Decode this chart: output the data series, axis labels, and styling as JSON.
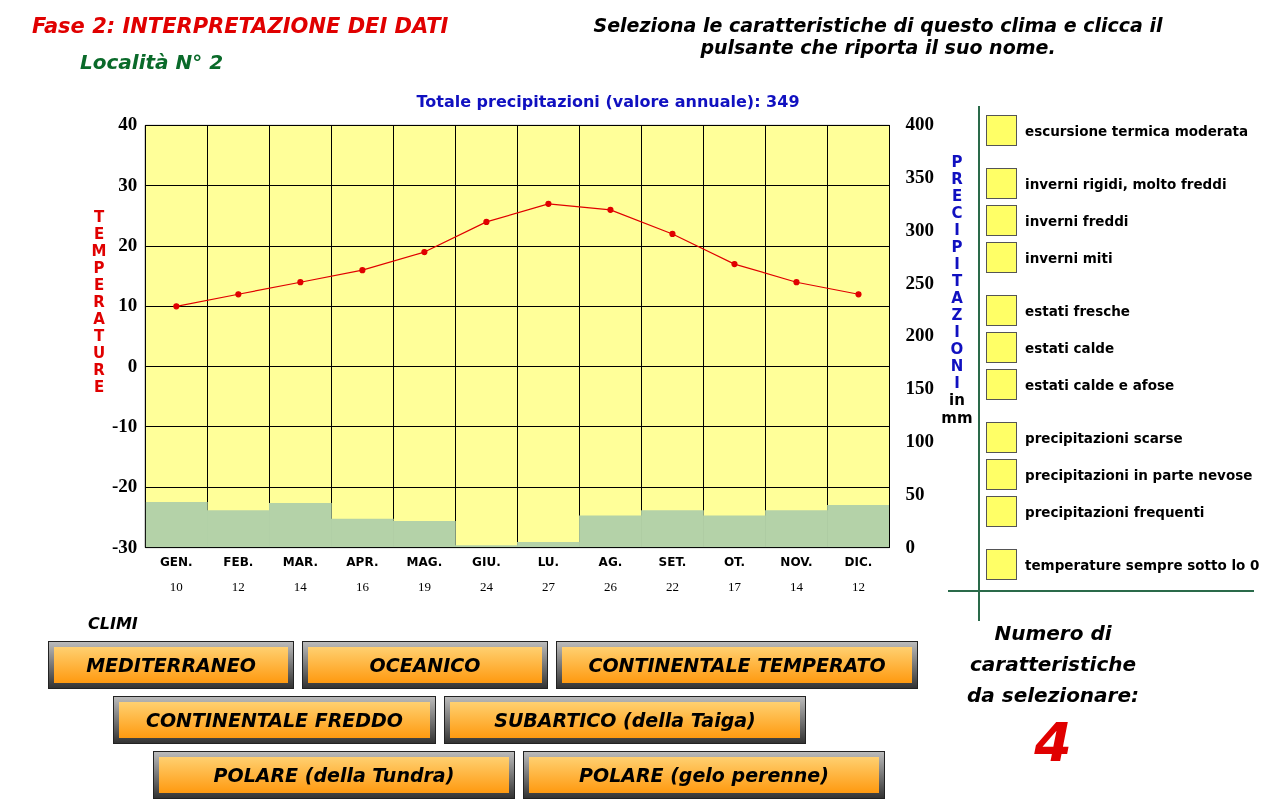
{
  "chart_data": [
    {
      "type": "bar",
      "title": "Fase 2: INTERPRETAZIONE DEI DATI",
      "subtitle": "Località N° 2",
      "annotations": [
        "Seleziona le caratteristiche  di questo clima e clicca il pulsante che riporta il suo nome.",
        "Totale precipitazioni (valore annuale):  349"
      ],
      "categories": [
        "GEN.",
        "FEB.",
        "MAR.",
        "APR.",
        "MAG.",
        "GIU.",
        "LU.",
        "AG.",
        "SET.",
        "OT.",
        "NOV.",
        "DIC."
      ],
      "series": [
        {
          "type": "bar",
          "axis": "y2",
          "color": "#b4d2a8",
          "values": [
            43,
            35,
            42,
            27,
            25,
            2,
            5,
            30,
            35,
            30,
            35,
            40
          ]
        },
        {
          "type": "line",
          "axis": "y",
          "color": "#e00000",
          "marker": "circle",
          "values": [
            10,
            12,
            14,
            16,
            19,
            24,
            27,
            26,
            22,
            17,
            14,
            12
          ],
          "value_labels": [
            "10",
            "12",
            "14",
            "16",
            "19",
            "24",
            "27",
            "26",
            "22",
            "17",
            "14",
            "12"
          ]
        }
      ],
      "ylabel": "TEMPERATURE",
      "y2label": "PRECIPITAZIONI in mm",
      "ylim": [
        -30,
        40
      ],
      "yticks": [
        -30,
        -20,
        -10,
        0,
        10,
        20,
        30,
        40
      ],
      "y2lim": [
        0,
        400
      ],
      "y2ticks": [
        0,
        50,
        100,
        150,
        200,
        250,
        300,
        350,
        400
      ],
      "grid": true,
      "legend": false
    },
    {
      "type": "other",
      "annotations": [
        "escursione termica moderata",
        "inverni rigidi, molto freddi",
        "inverni freddi",
        "inverni miti",
        "estati fresche",
        "estati calde",
        "estati calde e afose",
        "precipitazioni scarse",
        "precipitazioni in parte nevose",
        "precipitazioni frequenti",
        "temperature sempre sotto lo 0"
      ]
    },
    {
      "type": "other",
      "title": "CLIMI",
      "annotations": [
        "MEDITERRANEO",
        "OCEANICO",
        "CONTINENTALE TEMPERATO",
        "CONTINENTALE FREDDO",
        "SUBARTICO (della Taiga)",
        "POLARE (della Tundra)",
        "POLARE (gelo perenne)"
      ]
    },
    {
      "type": "other",
      "title": "Numero di caratteristiche da selezionare:",
      "annotations": [
        "4"
      ]
    }
  ]
}
